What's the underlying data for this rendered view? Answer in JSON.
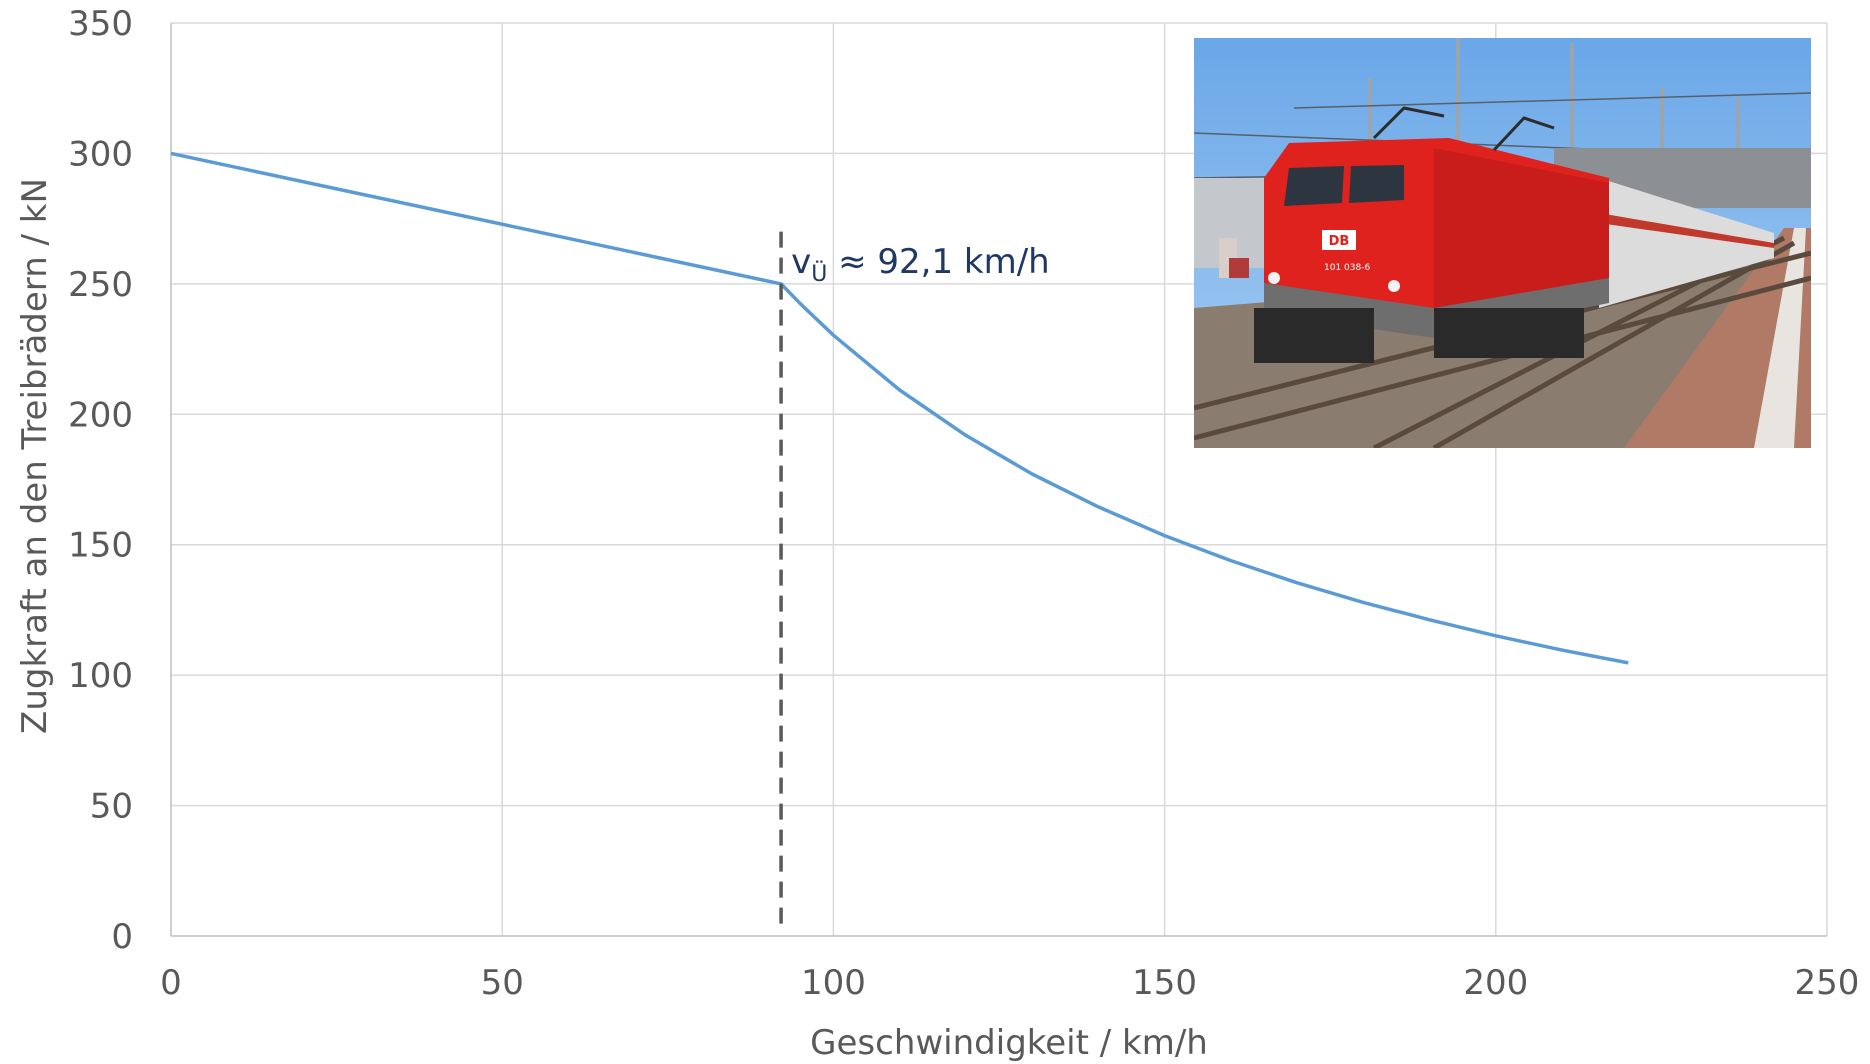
{
  "chart_data": {
    "type": "line",
    "xlabel": "Geschwindigkeit / km/h",
    "ylabel": "Zugkraft an den Treibrädern / kN",
    "xlim": [
      0,
      250
    ],
    "ylim": [
      0,
      350
    ],
    "xticks": [
      0,
      50,
      100,
      150,
      200,
      250
    ],
    "yticks": [
      0,
      50,
      100,
      150,
      200,
      250,
      300,
      350
    ],
    "grid": true,
    "series": [
      {
        "color": "#5b9bd5",
        "x": [
          0,
          92.1,
          95,
          100,
          110,
          120,
          130,
          140,
          150,
          160,
          170,
          180,
          190,
          200,
          210,
          220
        ],
        "y": [
          300,
          250,
          242.4,
          230.3,
          209.3,
          191.9,
          177.1,
          164.5,
          153.5,
          143.9,
          135.4,
          127.9,
          121.2,
          115.1,
          109.6,
          104.7
        ]
      }
    ],
    "vline": {
      "x": 92.1,
      "y_top": 270,
      "color": "#595959",
      "style": "dashed"
    },
    "annotation": {
      "main": "v",
      "sub": "Ü",
      "rest": " ≈ 92,1 km/h",
      "x": 92.1,
      "y": 258
    },
    "inset_photo": {
      "description_icon": "locomotive-photo",
      "sign": "DB",
      "number": "101 038-6",
      "colors": {
        "sky": "#7fb5ec",
        "loco": "#e0221f",
        "ballast": "#8a7c6e",
        "platform": "#b07a66",
        "coach": "#d8d8d8"
      }
    }
  }
}
